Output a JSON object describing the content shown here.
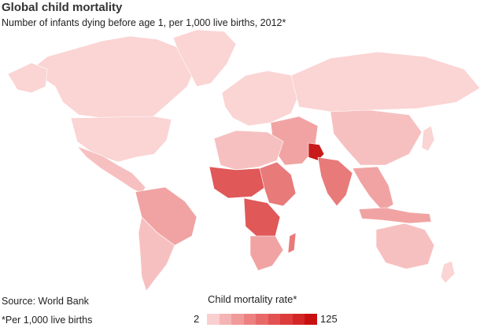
{
  "header": {
    "title": "Global child mortality",
    "subtitle": "Number of infants dying before age 1, per 1,000 live births, 2012*"
  },
  "footer": {
    "source": "Source: World Bank",
    "footnote": "*Per 1,000 live births"
  },
  "legend": {
    "title": "Child mortality rate*",
    "min_label": "2",
    "max_label": "125",
    "colors": [
      "#f9cfcf",
      "#f5b4b4",
      "#f19a9a",
      "#ec8181",
      "#e76969",
      "#e25252",
      "#dc3c3c",
      "#d42626",
      "#c81010"
    ]
  },
  "map_colors": {
    "lowest": "#fbd4d4",
    "low": "#f7c0c0",
    "mid": "#f1a3a3",
    "high": "#e87a7a",
    "higher": "#e05858",
    "highest": "#c81a1a"
  }
}
